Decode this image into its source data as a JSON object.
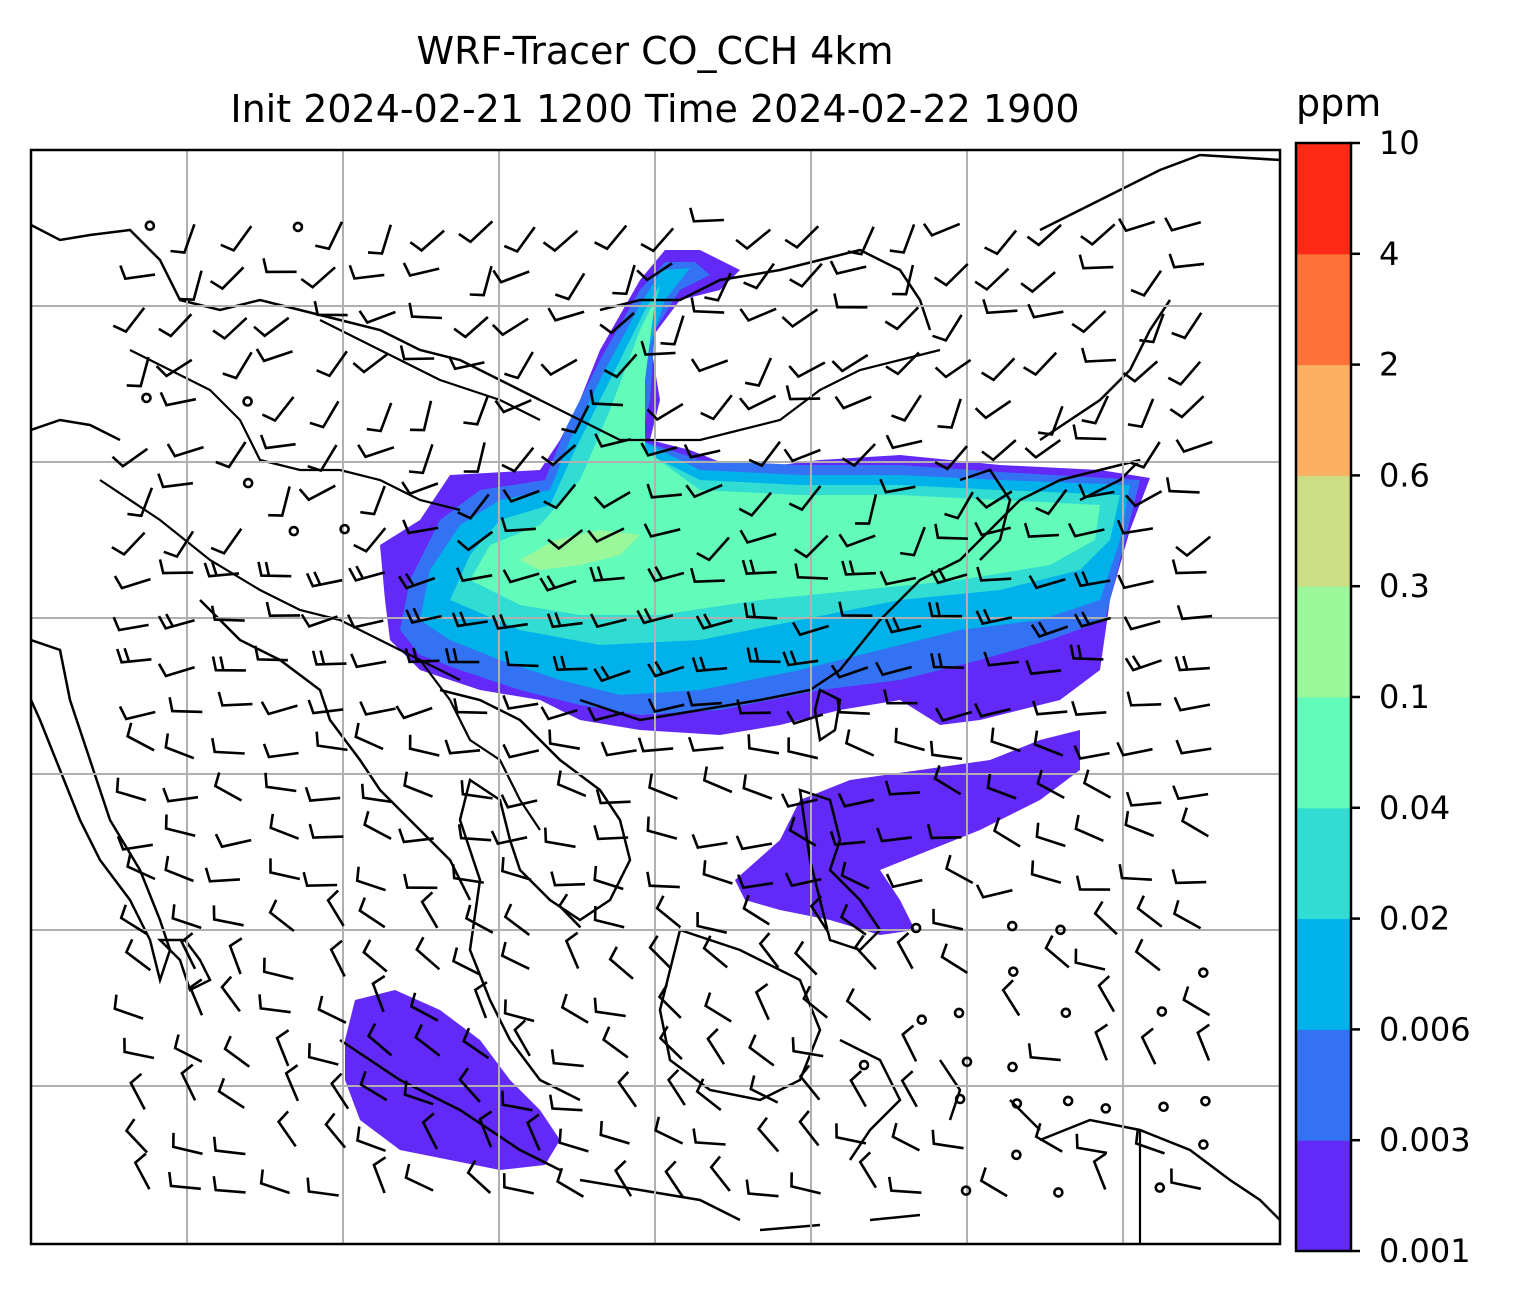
{
  "title": {
    "line1": "WRF-Tracer CO_CCH 4km",
    "line2": "Init 2024-02-21 1200 Time 2024-02-22 1900"
  },
  "colorbar": {
    "unit_label": "ppm",
    "levels": [
      "0.001",
      "0.003",
      "0.006",
      "0.02",
      "0.04",
      "0.1",
      "0.3",
      "0.6",
      "2",
      "4",
      "10"
    ],
    "colors": [
      "#6229f7",
      "#3373f3",
      "#01b2ea",
      "#31dcd3",
      "#62fbb9",
      "#9af89b",
      "#cddd84",
      "#fdaf62",
      "#fe7238",
      "#fe2a15"
    ]
  },
  "map": {
    "gridlines": "on",
    "wind_barbs": "shown",
    "coastlines": "shown",
    "background": "#ffffff"
  }
}
